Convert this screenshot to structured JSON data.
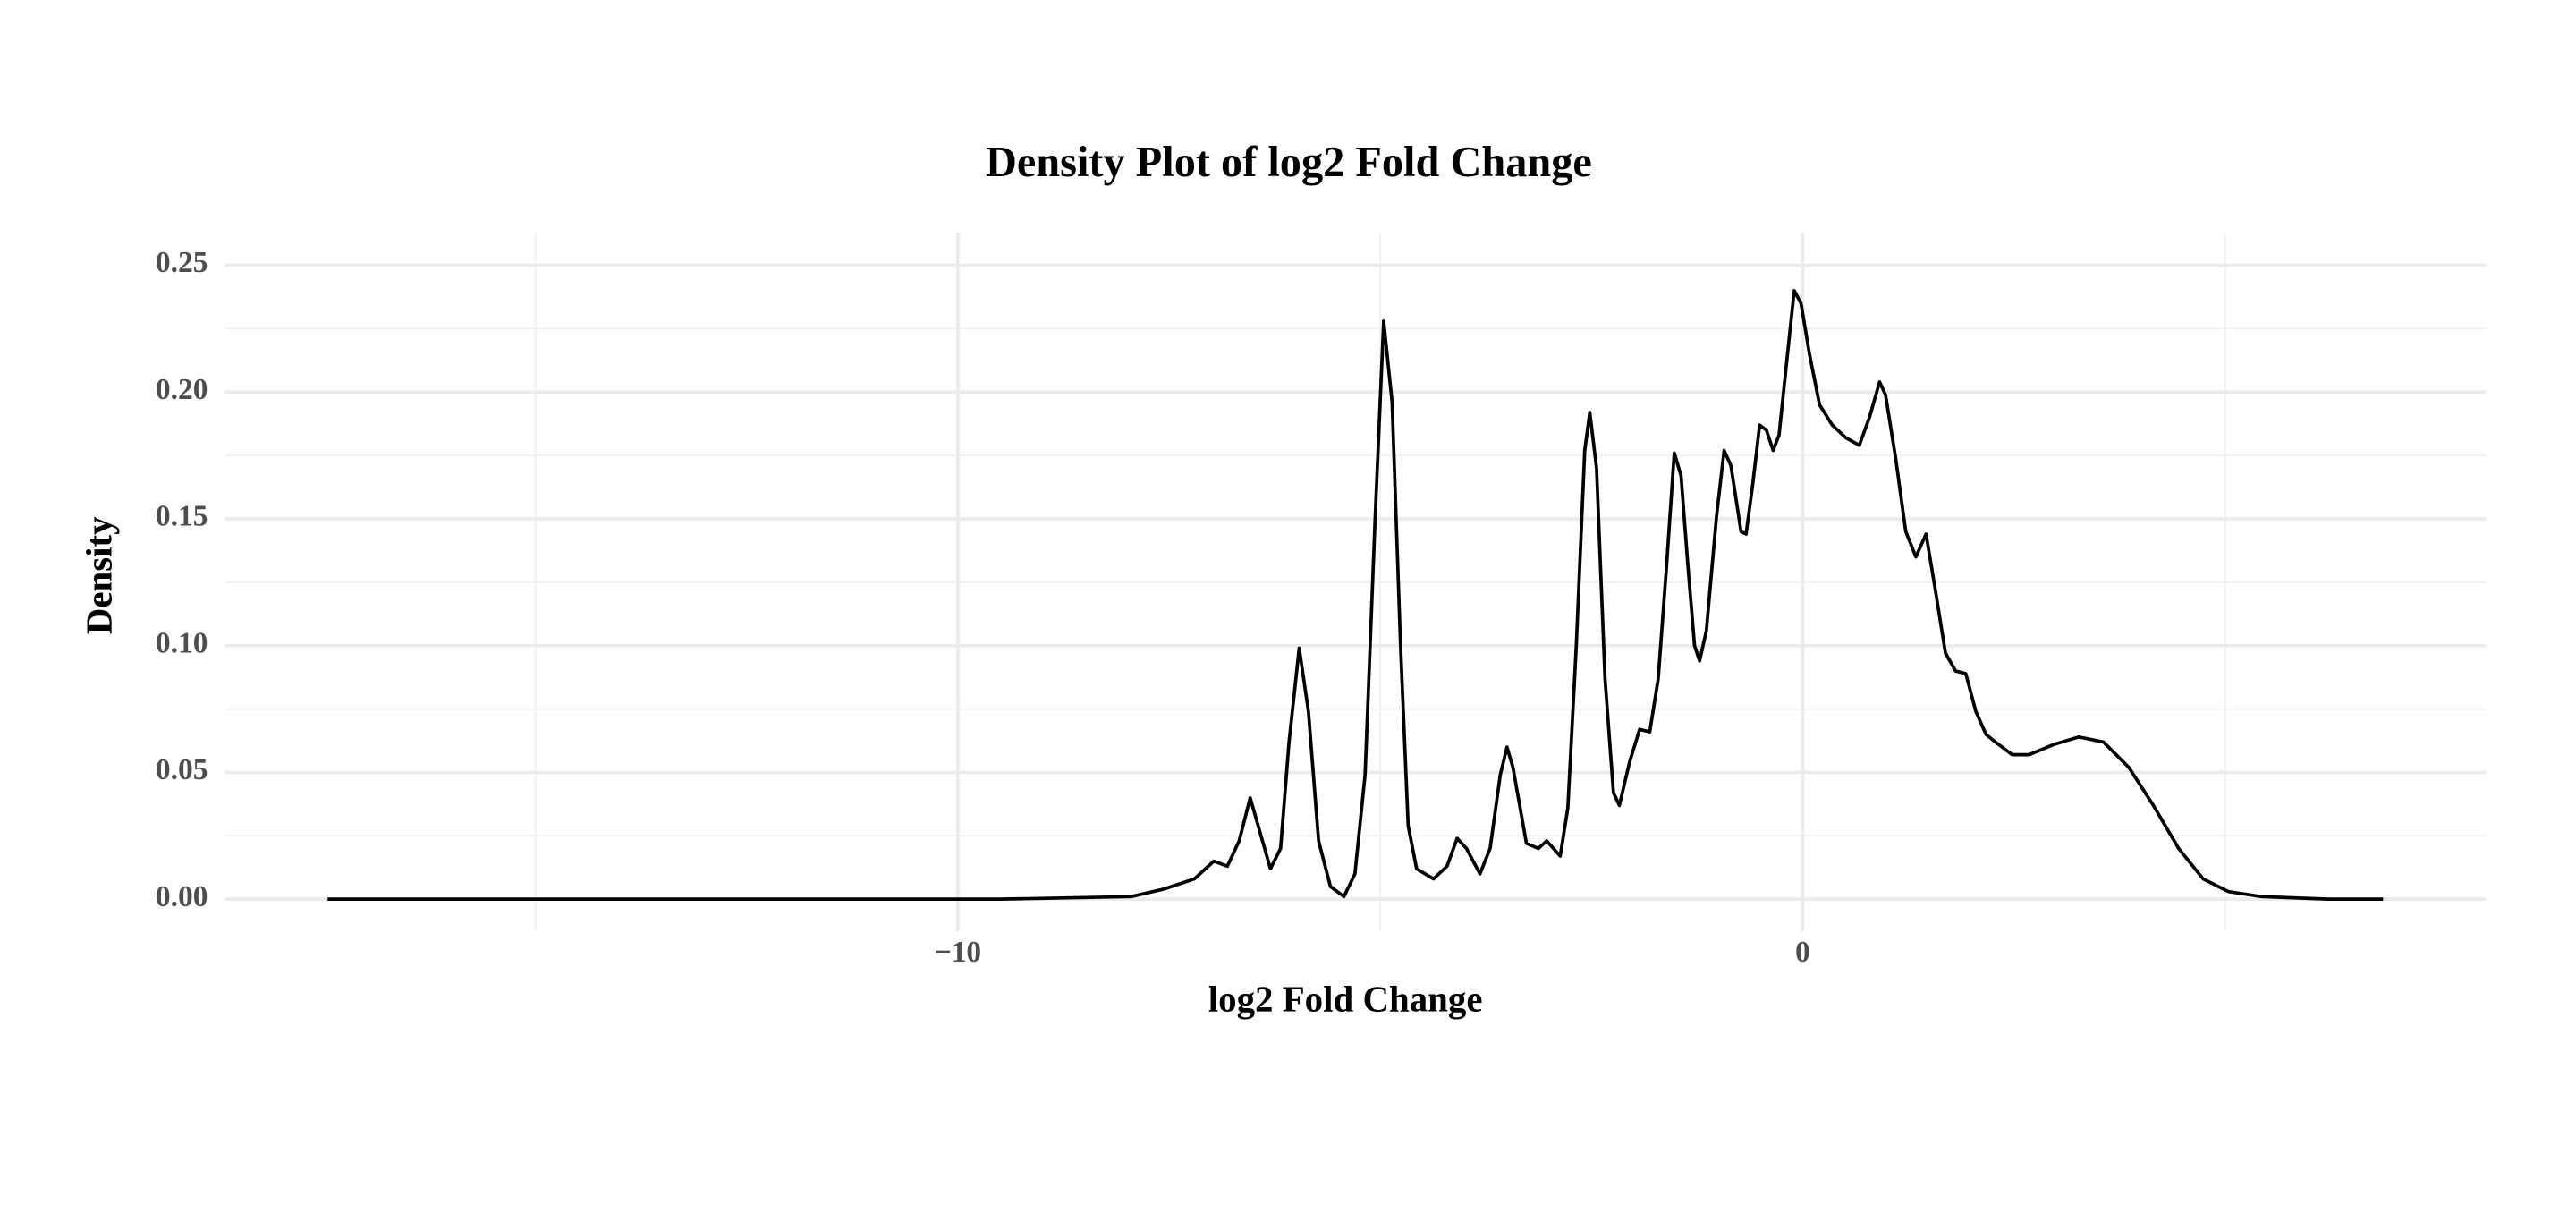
{
  "chart_data": {
    "type": "line",
    "title": "Density Plot of log2 Fold Change",
    "x_label": "log2 Fold Change",
    "y_label": "Density",
    "color": "#000000",
    "grid": true,
    "xlim": [
      -18.68,
      8.09
    ],
    "ylim": [
      -0.0127,
      0.2628
    ],
    "xticks": [
      {
        "value": -10,
        "label": "−10"
      },
      0
    ],
    "x_minor_ticks": [
      -15,
      -5,
      5
    ],
    "yticks": [
      {
        "value": 0,
        "label": "0.00"
      },
      0.05,
      {
        "value": 0.1,
        "label": "0.10"
      },
      0.15,
      {
        "value": 0.2,
        "label": "0.20"
      },
      0.25
    ],
    "y_minor_ticks": [
      0.025,
      0.075,
      0.125,
      0.175,
      0.225
    ],
    "x": [
      -17.46,
      -9.5,
      -7.95,
      -7.56,
      -7.2,
      -6.97,
      -6.81,
      -6.67,
      -6.54,
      -6.42,
      -6.3,
      -6.18,
      -6.08,
      -5.96,
      -5.85,
      -5.73,
      -5.59,
      -5.43,
      -5.3,
      -5.18,
      -5.06,
      -4.96,
      -4.86,
      -4.76,
      -4.67,
      -4.57,
      -4.37,
      -4.21,
      -4.09,
      -3.98,
      -3.82,
      -3.7,
      -3.58,
      -3.5,
      -3.43,
      -3.27,
      -3.13,
      -3.03,
      -2.87,
      -2.78,
      -2.68,
      -2.58,
      -2.52,
      -2.44,
      -2.34,
      -2.24,
      -2.17,
      -2.05,
      -1.93,
      -1.81,
      -1.71,
      -1.61,
      -1.52,
      -1.44,
      -1.36,
      -1.28,
      -1.22,
      -1.14,
      -1.02,
      -0.93,
      -0.85,
      -0.73,
      -0.67,
      -0.59,
      -0.51,
      -0.43,
      -0.35,
      -0.28,
      -0.18,
      -0.1,
      -0.02,
      0.08,
      0.2,
      0.35,
      0.51,
      0.67,
      0.79,
      0.91,
      0.98,
      1.1,
      1.22,
      1.34,
      1.46,
      1.57,
      1.69,
      1.81,
      1.93,
      2.05,
      2.17,
      2.28,
      2.48,
      2.68,
      2.97,
      3.27,
      3.56,
      3.86,
      4.15,
      4.45,
      4.74,
      5.04,
      5.43,
      6.22,
      6.87
    ],
    "values": [
      0,
      0,
      0.001,
      0.004,
      0.008,
      0.015,
      0.013,
      0.023,
      0.04,
      0.026,
      0.012,
      0.02,
      0.062,
      0.099,
      0.074,
      0.023,
      0.005,
      0.001,
      0.01,
      0.049,
      0.151,
      0.228,
      0.196,
      0.1,
      0.029,
      0.012,
      0.008,
      0.013,
      0.024,
      0.02,
      0.01,
      0.02,
      0.049,
      0.06,
      0.052,
      0.022,
      0.02,
      0.023,
      0.017,
      0.036,
      0.1,
      0.177,
      0.192,
      0.17,
      0.087,
      0.042,
      0.037,
      0.054,
      0.067,
      0.066,
      0.087,
      0.132,
      0.176,
      0.167,
      0.132,
      0.1,
      0.094,
      0.106,
      0.151,
      0.177,
      0.171,
      0.145,
      0.144,
      0.164,
      0.187,
      0.185,
      0.177,
      0.183,
      0.215,
      0.24,
      0.235,
      0.215,
      0.195,
      0.187,
      0.182,
      0.179,
      0.19,
      0.204,
      0.199,
      0.174,
      0.145,
      0.135,
      0.144,
      0.122,
      0.097,
      0.09,
      0.089,
      0.074,
      0.065,
      0.062,
      0.057,
      0.057,
      0.061,
      0.064,
      0.062,
      0.052,
      0.037,
      0.02,
      0.008,
      0.003,
      0.001,
      0,
      0
    ]
  }
}
